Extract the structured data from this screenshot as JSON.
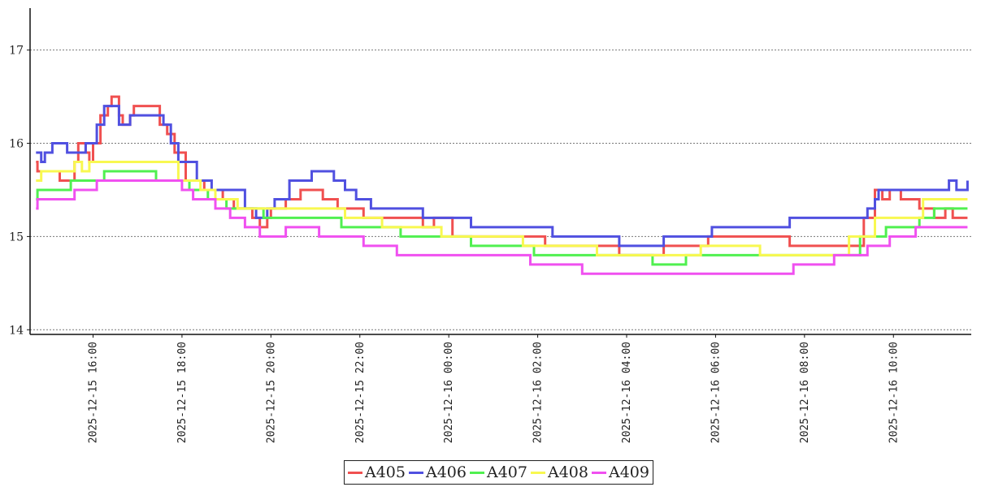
{
  "chart_data": {
    "type": "line",
    "title": "",
    "xlabel": "",
    "ylabel": "",
    "ylim": [
      13.95,
      17.45
    ],
    "xlim": [
      "2025-12-15 14:35",
      "2025-12-16 11:45"
    ],
    "yticks": [
      "14",
      "15",
      "16",
      "17"
    ],
    "xticks": [
      "2025-12-15 16:00",
      "2025-12-15 18:00",
      "2025-12-15 20:00",
      "2025-12-15 22:00",
      "2025-12-16 00:00",
      "2025-12-16 02:00",
      "2025-12-16 04:00",
      "2025-12-16 06:00",
      "2025-12-16 08:00",
      "2025-12-16 10:00"
    ],
    "grid": "horizontal dotted",
    "legend_position": "bottom-center",
    "series": [
      {
        "name": "A405",
        "color": "#f05050",
        "points": [
          [
            "2025-12-15 14:43",
            15.8
          ],
          [
            "2025-12-15 14:45",
            15.7
          ],
          [
            "2025-12-15 15:15",
            15.6
          ],
          [
            "2025-12-15 15:35",
            15.8
          ],
          [
            "2025-12-15 15:40",
            16.0
          ],
          [
            "2025-12-15 15:50",
            15.9
          ],
          [
            "2025-12-15 15:55",
            15.8
          ],
          [
            "2025-12-15 16:00",
            16.0
          ],
          [
            "2025-12-15 16:10",
            16.3
          ],
          [
            "2025-12-15 16:20",
            16.4
          ],
          [
            "2025-12-15 16:25",
            16.5
          ],
          [
            "2025-12-15 16:35",
            16.3
          ],
          [
            "2025-12-15 16:40",
            16.2
          ],
          [
            "2025-12-15 16:50",
            16.3
          ],
          [
            "2025-12-15 16:55",
            16.4
          ],
          [
            "2025-12-15 17:30",
            16.2
          ],
          [
            "2025-12-15 17:40",
            16.1
          ],
          [
            "2025-12-15 17:50",
            15.9
          ],
          [
            "2025-12-15 18:05",
            15.6
          ],
          [
            "2025-12-15 18:30",
            15.5
          ],
          [
            "2025-12-15 18:55",
            15.4
          ],
          [
            "2025-12-15 19:10",
            15.3
          ],
          [
            "2025-12-15 19:35",
            15.2
          ],
          [
            "2025-12-15 19:45",
            15.1
          ],
          [
            "2025-12-15 19:55",
            15.2
          ],
          [
            "2025-12-15 20:00",
            15.3
          ],
          [
            "2025-12-15 20:20",
            15.4
          ],
          [
            "2025-12-15 20:40",
            15.5
          ],
          [
            "2025-12-15 21:10",
            15.4
          ],
          [
            "2025-12-15 21:30",
            15.3
          ],
          [
            "2025-12-15 22:05",
            15.2
          ],
          [
            "2025-12-15 23:25",
            15.1
          ],
          [
            "2025-12-15 23:40",
            15.2
          ],
          [
            "2025-12-16 00:05",
            15.0
          ],
          [
            "2025-12-16 02:10",
            14.9
          ],
          [
            "2025-12-16 03:50",
            14.8
          ],
          [
            "2025-12-16 04:50",
            14.9
          ],
          [
            "2025-12-16 05:50",
            15.0
          ],
          [
            "2025-12-16 07:40",
            14.9
          ],
          [
            "2025-12-16 09:20",
            15.2
          ],
          [
            "2025-12-16 09:35",
            15.5
          ],
          [
            "2025-12-16 09:45",
            15.4
          ],
          [
            "2025-12-16 09:55",
            15.5
          ],
          [
            "2025-12-16 10:10",
            15.4
          ],
          [
            "2025-12-16 10:35",
            15.3
          ],
          [
            "2025-12-16 10:55",
            15.2
          ],
          [
            "2025-12-16 11:10",
            15.3
          ],
          [
            "2025-12-16 11:20",
            15.2
          ],
          [
            "2025-12-16 11:40",
            15.2
          ]
        ]
      },
      {
        "name": "A406",
        "color": "#5050e0",
        "points": [
          [
            "2025-12-15 14:43",
            15.9
          ],
          [
            "2025-12-15 14:50",
            15.8
          ],
          [
            "2025-12-15 14:55",
            15.9
          ],
          [
            "2025-12-15 15:05",
            16.0
          ],
          [
            "2025-12-15 15:25",
            15.9
          ],
          [
            "2025-12-15 15:50",
            16.0
          ],
          [
            "2025-12-15 16:05",
            16.2
          ],
          [
            "2025-12-15 16:15",
            16.4
          ],
          [
            "2025-12-15 16:35",
            16.2
          ],
          [
            "2025-12-15 16:50",
            16.3
          ],
          [
            "2025-12-15 17:35",
            16.2
          ],
          [
            "2025-12-15 17:45",
            16.0
          ],
          [
            "2025-12-15 17:55",
            15.8
          ],
          [
            "2025-12-15 18:20",
            15.6
          ],
          [
            "2025-12-15 18:40",
            15.5
          ],
          [
            "2025-12-15 19:25",
            15.3
          ],
          [
            "2025-12-15 19:40",
            15.2
          ],
          [
            "2025-12-15 19:55",
            15.3
          ],
          [
            "2025-12-15 20:05",
            15.4
          ],
          [
            "2025-12-15 20:25",
            15.6
          ],
          [
            "2025-12-15 20:55",
            15.7
          ],
          [
            "2025-12-15 21:25",
            15.6
          ],
          [
            "2025-12-15 21:40",
            15.5
          ],
          [
            "2025-12-15 21:55",
            15.4
          ],
          [
            "2025-12-15 22:15",
            15.3
          ],
          [
            "2025-12-15 23:25",
            15.2
          ],
          [
            "2025-12-16 00:30",
            15.1
          ],
          [
            "2025-12-16 02:20",
            15.0
          ],
          [
            "2025-12-16 03:50",
            14.9
          ],
          [
            "2025-12-16 04:50",
            15.0
          ],
          [
            "2025-12-16 05:40",
            15.0
          ],
          [
            "2025-12-16 05:55",
            15.1
          ],
          [
            "2025-12-16 07:40",
            15.2
          ],
          [
            "2025-12-16 09:25",
            15.3
          ],
          [
            "2025-12-16 09:35",
            15.4
          ],
          [
            "2025-12-16 09:40",
            15.5
          ],
          [
            "2025-12-16 11:10",
            15.5
          ],
          [
            "2025-12-16 11:15",
            15.6
          ],
          [
            "2025-12-16 11:25",
            15.5
          ],
          [
            "2025-12-16 11:40",
            15.6
          ]
        ]
      },
      {
        "name": "A407",
        "color": "#50f050",
        "points": [
          [
            "2025-12-15 14:43",
            15.4
          ],
          [
            "2025-12-15 14:45",
            15.5
          ],
          [
            "2025-12-15 15:30",
            15.6
          ],
          [
            "2025-12-15 16:15",
            15.7
          ],
          [
            "2025-12-15 17:25",
            15.6
          ],
          [
            "2025-12-15 18:10",
            15.5
          ],
          [
            "2025-12-15 18:35",
            15.4
          ],
          [
            "2025-12-15 19:00",
            15.3
          ],
          [
            "2025-12-15 19:50",
            15.2
          ],
          [
            "2025-12-15 21:35",
            15.1
          ],
          [
            "2025-12-15 22:55",
            15.0
          ],
          [
            "2025-12-16 00:30",
            14.9
          ],
          [
            "2025-12-16 01:55",
            14.8
          ],
          [
            "2025-12-16 04:35",
            14.7
          ],
          [
            "2025-12-16 05:20",
            14.8
          ],
          [
            "2025-12-16 09:15",
            15.0
          ],
          [
            "2025-12-16 09:50",
            15.1
          ],
          [
            "2025-12-16 10:35",
            15.2
          ],
          [
            "2025-12-16 10:55",
            15.3
          ],
          [
            "2025-12-16 11:40",
            15.3
          ]
        ]
      },
      {
        "name": "A408",
        "color": "#f8f850",
        "points": [
          [
            "2025-12-15 14:43",
            15.6
          ],
          [
            "2025-12-15 14:50",
            15.7
          ],
          [
            "2025-12-15 15:35",
            15.8
          ],
          [
            "2025-12-15 15:45",
            15.7
          ],
          [
            "2025-12-15 15:55",
            15.8
          ],
          [
            "2025-12-15 17:55",
            15.6
          ],
          [
            "2025-12-15 18:25",
            15.5
          ],
          [
            "2025-12-15 18:45",
            15.4
          ],
          [
            "2025-12-15 19:15",
            15.3
          ],
          [
            "2025-12-15 21:40",
            15.2
          ],
          [
            "2025-12-15 22:30",
            15.1
          ],
          [
            "2025-12-15 23:50",
            15.0
          ],
          [
            "2025-12-16 01:40",
            14.9
          ],
          [
            "2025-12-16 03:20",
            14.8
          ],
          [
            "2025-12-16 05:40",
            14.9
          ],
          [
            "2025-12-16 07:00",
            14.8
          ],
          [
            "2025-12-16 09:00",
            15.0
          ],
          [
            "2025-12-16 09:35",
            15.2
          ],
          [
            "2025-12-16 10:40",
            15.4
          ],
          [
            "2025-12-16 11:40",
            15.4
          ]
        ]
      },
      {
        "name": "A409",
        "color": "#f050f0",
        "points": [
          [
            "2025-12-15 14:43",
            15.3
          ],
          [
            "2025-12-15 14:45",
            15.4
          ],
          [
            "2025-12-15 15:35",
            15.5
          ],
          [
            "2025-12-15 16:05",
            15.6
          ],
          [
            "2025-12-15 18:00",
            15.5
          ],
          [
            "2025-12-15 18:15",
            15.4
          ],
          [
            "2025-12-15 18:45",
            15.3
          ],
          [
            "2025-12-15 19:05",
            15.2
          ],
          [
            "2025-12-15 19:25",
            15.1
          ],
          [
            "2025-12-15 19:45",
            15.0
          ],
          [
            "2025-12-15 20:20",
            15.1
          ],
          [
            "2025-12-15 21:05",
            15.0
          ],
          [
            "2025-12-15 22:05",
            14.9
          ],
          [
            "2025-12-15 22:50",
            14.8
          ],
          [
            "2025-12-16 01:50",
            14.7
          ],
          [
            "2025-12-16 03:00",
            14.6
          ],
          [
            "2025-12-16 07:45",
            14.7
          ],
          [
            "2025-12-16 08:40",
            14.8
          ],
          [
            "2025-12-16 09:25",
            14.9
          ],
          [
            "2025-12-16 09:55",
            15.0
          ],
          [
            "2025-12-16 10:30",
            15.1
          ],
          [
            "2025-12-16 11:40",
            15.1
          ]
        ]
      }
    ]
  }
}
